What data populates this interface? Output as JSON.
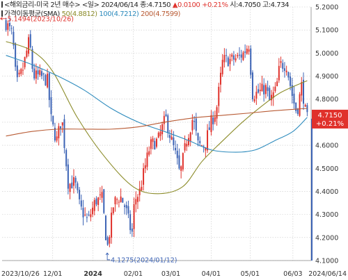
{
  "header": {
    "instrument": "<해외금리-미국 2년 매수> <일>",
    "date": "2024/06/14",
    "close_label": "종:",
    "close": "4.7150",
    "change_arrow": "▲",
    "change": "0.0100",
    "change_pct": "+0.21%",
    "open_label": "시:",
    "open": "4.7050",
    "high_label": "고:",
    "high": "4.734"
  },
  "ma_legend": {
    "title": "가격이동평균(SMA)",
    "items": [
      {
        "period": "50",
        "value": "(4.8812)",
        "color": "#8c8c2a"
      },
      {
        "period": "100",
        "value": "(4.7212)",
        "color": "#2d8bbd"
      },
      {
        "period": "200",
        "value": "(4.7599)",
        "color": "#b85a33"
      }
    ]
  },
  "annotations": {
    "high_marker": "5.1494(2023/10/26)",
    "low_marker": "4.1275(2024/01/12)"
  },
  "price_tag": {
    "price": "4.7150",
    "change": "+0.21%",
    "bg": "#e0312b"
  },
  "colors": {
    "up": "#e0312b",
    "down": "#3c63b5",
    "ma50": "#8c8c2a",
    "ma100": "#2d8bbd",
    "ma200": "#b85a33",
    "grid": "#c8c8c8"
  },
  "chart_data": {
    "type": "candlestick",
    "ylim": [
      4.1,
      5.2
    ],
    "y_ticks": [
      "5.2000",
      "5.1000",
      "5.0000",
      "4.9000",
      "4.8000",
      "4.7000",
      "4.6000",
      "4.5000",
      "4.4000",
      "4.3000",
      "4.2000",
      "4.1000"
    ],
    "x_ticks": [
      {
        "label": "2023/10/26",
        "date": "2023-10-26",
        "bold": false
      },
      {
        "label": "12/01",
        "date": "2023-12-01",
        "bold": false
      },
      {
        "label": "2024",
        "date": "2024-01-01",
        "bold": true
      },
      {
        "label": "02/01",
        "date": "2024-02-01",
        "bold": false
      },
      {
        "label": "03/01",
        "date": "2024-03-01",
        "bold": false
      },
      {
        "label": "04/01",
        "date": "2024-04-01",
        "bold": false
      },
      {
        "label": "05/01",
        "date": "2024-05-01",
        "bold": false
      },
      {
        "label": "06/03",
        "date": "2024-06-03",
        "bold": false
      },
      {
        "label": "2024/06/14",
        "date": "2024-06-14",
        "bold": false
      }
    ],
    "close_path": [
      [
        "2023-10-26",
        5.13
      ],
      [
        "2023-10-31",
        5.08
      ],
      [
        "2023-11-03",
        4.86
      ],
      [
        "2023-11-08",
        4.93
      ],
      [
        "2023-11-13",
        5.06
      ],
      [
        "2023-11-16",
        4.9
      ],
      [
        "2023-11-21",
        4.9
      ],
      [
        "2023-11-27",
        4.88
      ],
      [
        "2023-11-30",
        4.7
      ],
      [
        "2023-12-04",
        4.62
      ],
      [
        "2023-12-08",
        4.72
      ],
      [
        "2023-12-13",
        4.43
      ],
      [
        "2023-12-18",
        4.44
      ],
      [
        "2023-12-22",
        4.33
      ],
      [
        "2023-12-28",
        4.27
      ],
      [
        "2024-01-03",
        4.36
      ],
      [
        "2024-01-08",
        4.37
      ],
      [
        "2024-01-12",
        4.15
      ],
      [
        "2024-01-17",
        4.35
      ],
      [
        "2024-01-22",
        4.38
      ],
      [
        "2024-01-26",
        4.33
      ],
      [
        "2024-01-31",
        4.21
      ],
      [
        "2024-02-02",
        4.36
      ],
      [
        "2024-02-06",
        4.4
      ],
      [
        "2024-02-09",
        4.48
      ],
      [
        "2024-02-14",
        4.6
      ],
      [
        "2024-02-20",
        4.62
      ],
      [
        "2024-02-26",
        4.72
      ],
      [
        "2024-02-29",
        4.65
      ],
      [
        "2024-03-05",
        4.55
      ],
      [
        "2024-03-08",
        4.47
      ],
      [
        "2024-03-13",
        4.62
      ],
      [
        "2024-03-18",
        4.72
      ],
      [
        "2024-03-22",
        4.6
      ],
      [
        "2024-03-27",
        4.6
      ],
      [
        "2024-04-01",
        4.7
      ],
      [
        "2024-04-05",
        4.75
      ],
      [
        "2024-04-10",
        4.97
      ],
      [
        "2024-04-16",
        4.97
      ],
      [
        "2024-04-22",
        4.98
      ],
      [
        "2024-04-26",
        5.0
      ],
      [
        "2024-04-30",
        5.04
      ],
      [
        "2024-05-03",
        4.82
      ],
      [
        "2024-05-08",
        4.83
      ],
      [
        "2024-05-13",
        4.85
      ],
      [
        "2024-05-16",
        4.79
      ],
      [
        "2024-05-21",
        4.84
      ],
      [
        "2024-05-24",
        4.95
      ],
      [
        "2024-05-29",
        4.95
      ],
      [
        "2024-06-03",
        4.8
      ],
      [
        "2024-06-06",
        4.74
      ],
      [
        "2024-06-10",
        4.87
      ],
      [
        "2024-06-12",
        4.76
      ],
      [
        "2024-06-14",
        4.715
      ]
    ],
    "series": [
      {
        "name": "50",
        "values": [
          [
            "2023-10-26",
            5.05
          ],
          [
            "2023-11-15",
            5.01
          ],
          [
            "2023-12-01",
            4.92
          ],
          [
            "2023-12-20",
            4.72
          ],
          [
            "2024-01-10",
            4.55
          ],
          [
            "2024-02-01",
            4.42
          ],
          [
            "2024-02-20",
            4.39
          ],
          [
            "2024-03-10",
            4.42
          ],
          [
            "2024-03-25",
            4.53
          ],
          [
            "2024-04-10",
            4.62
          ],
          [
            "2024-04-25",
            4.7
          ],
          [
            "2024-05-10",
            4.77
          ],
          [
            "2024-05-25",
            4.83
          ],
          [
            "2024-06-14",
            4.88
          ]
        ]
      },
      {
        "name": "100",
        "values": [
          [
            "2023-10-26",
            4.99
          ],
          [
            "2023-11-15",
            4.95
          ],
          [
            "2023-12-05",
            4.9
          ],
          [
            "2023-12-25",
            4.84
          ],
          [
            "2024-01-15",
            4.76
          ],
          [
            "2024-02-05",
            4.7
          ],
          [
            "2024-02-25",
            4.66
          ],
          [
            "2024-03-15",
            4.62
          ],
          [
            "2024-04-01",
            4.58
          ],
          [
            "2024-04-20",
            4.57
          ],
          [
            "2024-05-05",
            4.58
          ],
          [
            "2024-05-20",
            4.62
          ],
          [
            "2024-06-03",
            4.66
          ],
          [
            "2024-06-14",
            4.7212
          ]
        ]
      },
      {
        "name": "200",
        "values": [
          [
            "2023-10-26",
            4.64
          ],
          [
            "2023-11-15",
            4.66
          ],
          [
            "2023-12-05",
            4.67
          ],
          [
            "2023-12-25",
            4.67
          ],
          [
            "2024-01-15",
            4.67
          ],
          [
            "2024-02-05",
            4.68
          ],
          [
            "2024-02-25",
            4.7
          ],
          [
            "2024-03-20",
            4.72
          ],
          [
            "2024-04-10",
            4.73
          ],
          [
            "2024-05-01",
            4.74
          ],
          [
            "2024-05-20",
            4.75
          ],
          [
            "2024-06-14",
            4.76
          ]
        ]
      }
    ]
  }
}
